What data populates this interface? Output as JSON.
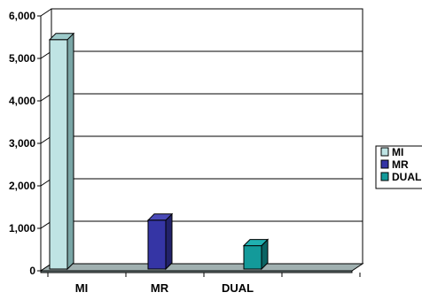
{
  "chart_data": {
    "type": "bar",
    "categories": [
      "MI",
      "MR",
      "DUAL"
    ],
    "series": [
      {
        "name": "MI",
        "values": [
          5400,
          null,
          null
        ]
      },
      {
        "name": "MR",
        "values": [
          null,
          1150,
          null
        ]
      },
      {
        "name": "DUAL",
        "values": [
          null,
          null,
          550
        ]
      }
    ],
    "yticks": [
      "0",
      "1,000",
      "2,000",
      "3,000",
      "4,000",
      "5,000",
      "6,000"
    ],
    "ylim": [
      0,
      6000
    ],
    "grid": true,
    "legend": "right"
  },
  "colors": {
    "MI": {
      "front": "#bfe4e4",
      "side": "#7aa6a6",
      "top": "#9dcaca"
    },
    "MR": {
      "front": "#3535a5",
      "side": "#22226a",
      "top": "#4a4ab8"
    },
    "DUAL": {
      "front": "#139a9a",
      "side": "#0b6363",
      "top": "#20b0b0"
    },
    "floor": "#7a8c8c",
    "floor_top": "#a0b0b0"
  }
}
